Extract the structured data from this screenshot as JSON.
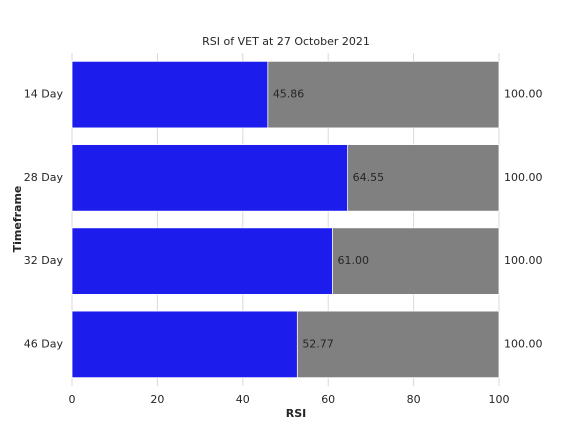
{
  "chart_data": {
    "type": "overlay-barh",
    "title": "RSI of VET at 27 October 2021",
    "xlabel": "RSI",
    "ylabel": "Timeframe",
    "categories": [
      "14 Day",
      "28 Day",
      "32 Day",
      "46 Day"
    ],
    "series": [
      {
        "color": "#808080",
        "values": [
          100,
          100,
          100,
          100
        ],
        "value_labels": [
          "100.00",
          "100.00",
          "100.00",
          "100.00"
        ]
      },
      {
        "color": "#1c1ced",
        "values": [
          45.86,
          64.55,
          61.0,
          52.77
        ],
        "value_labels": [
          "45.86",
          "64.55",
          "61.00",
          "52.77"
        ]
      }
    ],
    "xlim": [
      0,
      100
    ],
    "xticks": [
      0,
      20,
      40,
      60,
      80,
      100
    ],
    "grid": true
  }
}
